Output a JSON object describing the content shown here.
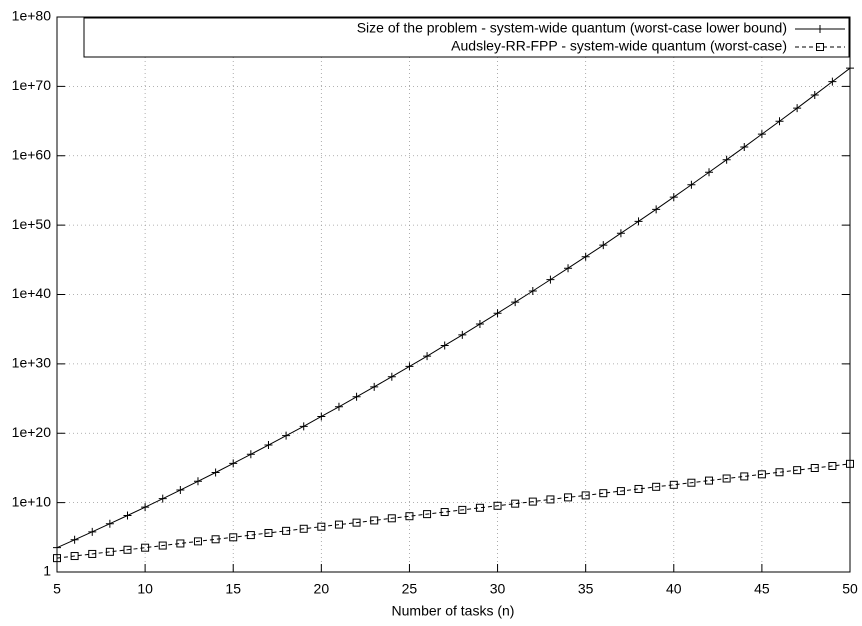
{
  "chart_data": {
    "type": "line",
    "xlabel": "Number of tasks (n)",
    "log_y": true,
    "grid": true,
    "legend": "top-right",
    "x": [
      5,
      6,
      7,
      8,
      9,
      10,
      11,
      12,
      13,
      14,
      15,
      16,
      17,
      18,
      19,
      20,
      21,
      22,
      23,
      24,
      25,
      26,
      27,
      28,
      29,
      30,
      31,
      32,
      33,
      34,
      35,
      36,
      37,
      38,
      39,
      40,
      41,
      42,
      43,
      44,
      45,
      46,
      47,
      48,
      49,
      50
    ],
    "series": [
      {
        "name": "Size of the problem - system-wide quantum (worst-case lower bound)",
        "color": "#000000",
        "marker": "plus",
        "line_style": "solid",
        "values": [
          3200.0,
          44000.0,
          620000.0,
          9100000.0,
          140000000.0,
          2200000000.0,
          37000000000.0,
          650000000000.0,
          12000000000000.0,
          220000000000000.0,
          4500000000000000.0,
          9.3e+16,
          2e+18,
          4.5e+19,
          1e+21,
          2.6e+22,
          6.6e+23,
          1.8e+25,
          4.9e+26,
          1.4e+28,
          4.3e+29,
          1.3e+31,
          4.5e+32,
          1.5e+34,
          5.5e+35,
          2e+37,
          7.9e+38,
          3.2e+40,
          1.4e+42,
          6.2e+43,
          2.8e+45,
          1.3e+47,
          6.8e+48,
          3.5e+50,
          1.9e+52,
          1.1e+54,
          6.6e+55,
          4.2e+57,
          2.7e+59,
          1.8e+61,
          1.3e+63,
          9.3e+64,
          7.2e+66,
          5.8e+68,
          4.8e+70,
          4.2e+72
        ]
      },
      {
        "name": "Audsley-RR-FPP - system-wide quantum (worst-case)",
        "color": "#000000",
        "marker": "square",
        "line_style": "dashed",
        "values": [
          100.0,
          200.0,
          400.0,
          810.0,
          1600.0,
          3200.0,
          6500.0,
          13000.0,
          26000.0,
          52000.0,
          100000.0,
          210000.0,
          420000.0,
          850000.0,
          1700000.0,
          3400000.0,
          6800000.0,
          13000000.0,
          27000000.0,
          55000000.0,
          110000000.0,
          220000000.0,
          440000000.0,
          890000000.0,
          1800000000.0,
          3500000000.0,
          7100000000.0,
          14000000000.0,
          29000000000.0,
          57000000000.0,
          110000000000.0,
          230000000000.0,
          460000000000.0,
          930000000000.0,
          1900000000000.0,
          3700000000000.0,
          7400000000000.0,
          15000000000000.0,
          30000000000000.0,
          60000000000000.0,
          120000000000000.0,
          240000000000000.0,
          480000000000000.0,
          980000000000000.0,
          1900000000000000.0,
          3900000000000000.0
        ]
      }
    ],
    "xlim": [
      5,
      50
    ],
    "xticks": [
      5,
      10,
      15,
      20,
      25,
      30,
      35,
      40,
      45,
      50
    ],
    "ylim": [
      1,
      1e+80
    ],
    "yticks": [
      1,
      {
        "value": 10000000000.0,
        "label": "1e+10"
      },
      {
        "value": 1e+20,
        "label": "1e+20"
      },
      {
        "value": 1e+30,
        "label": "1e+30"
      },
      {
        "value": 1e+40,
        "label": "1e+40"
      },
      {
        "value": 1e+50,
        "label": "1e+50"
      },
      {
        "value": 1e+60,
        "label": "1e+60"
      },
      {
        "value": 1e+70,
        "label": "1e+70"
      },
      {
        "value": 1e+80,
        "label": "1e+80"
      }
    ]
  }
}
